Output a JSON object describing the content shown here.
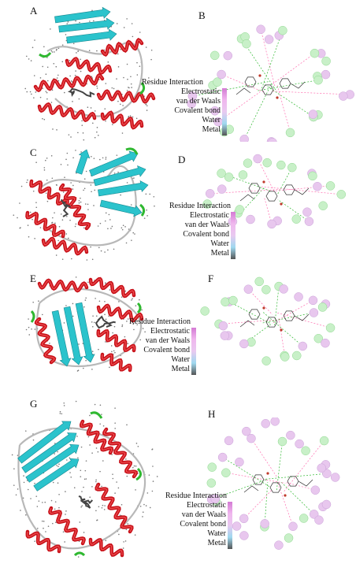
{
  "panels": [
    {
      "label": "A"
    },
    {
      "label": "B"
    },
    {
      "label": "C"
    },
    {
      "label": "D"
    },
    {
      "label": "E"
    },
    {
      "label": "F"
    },
    {
      "label": "G"
    },
    {
      "label": "H"
    }
  ],
  "legend": {
    "title": "Residue Interaction",
    "items": [
      "Electrostatic",
      "van der Waals",
      "Covalent bond",
      "Water",
      "Metal"
    ]
  },
  "colors": {
    "helix": "#c8121a",
    "sheet": "#2bc3cc",
    "turn": "#2fb830",
    "coil": "#b8b8b8",
    "residue_electrostatic": "#e8c7ee",
    "residue_vdw": "#c8f0c8",
    "ligand": "#c0392b"
  }
}
